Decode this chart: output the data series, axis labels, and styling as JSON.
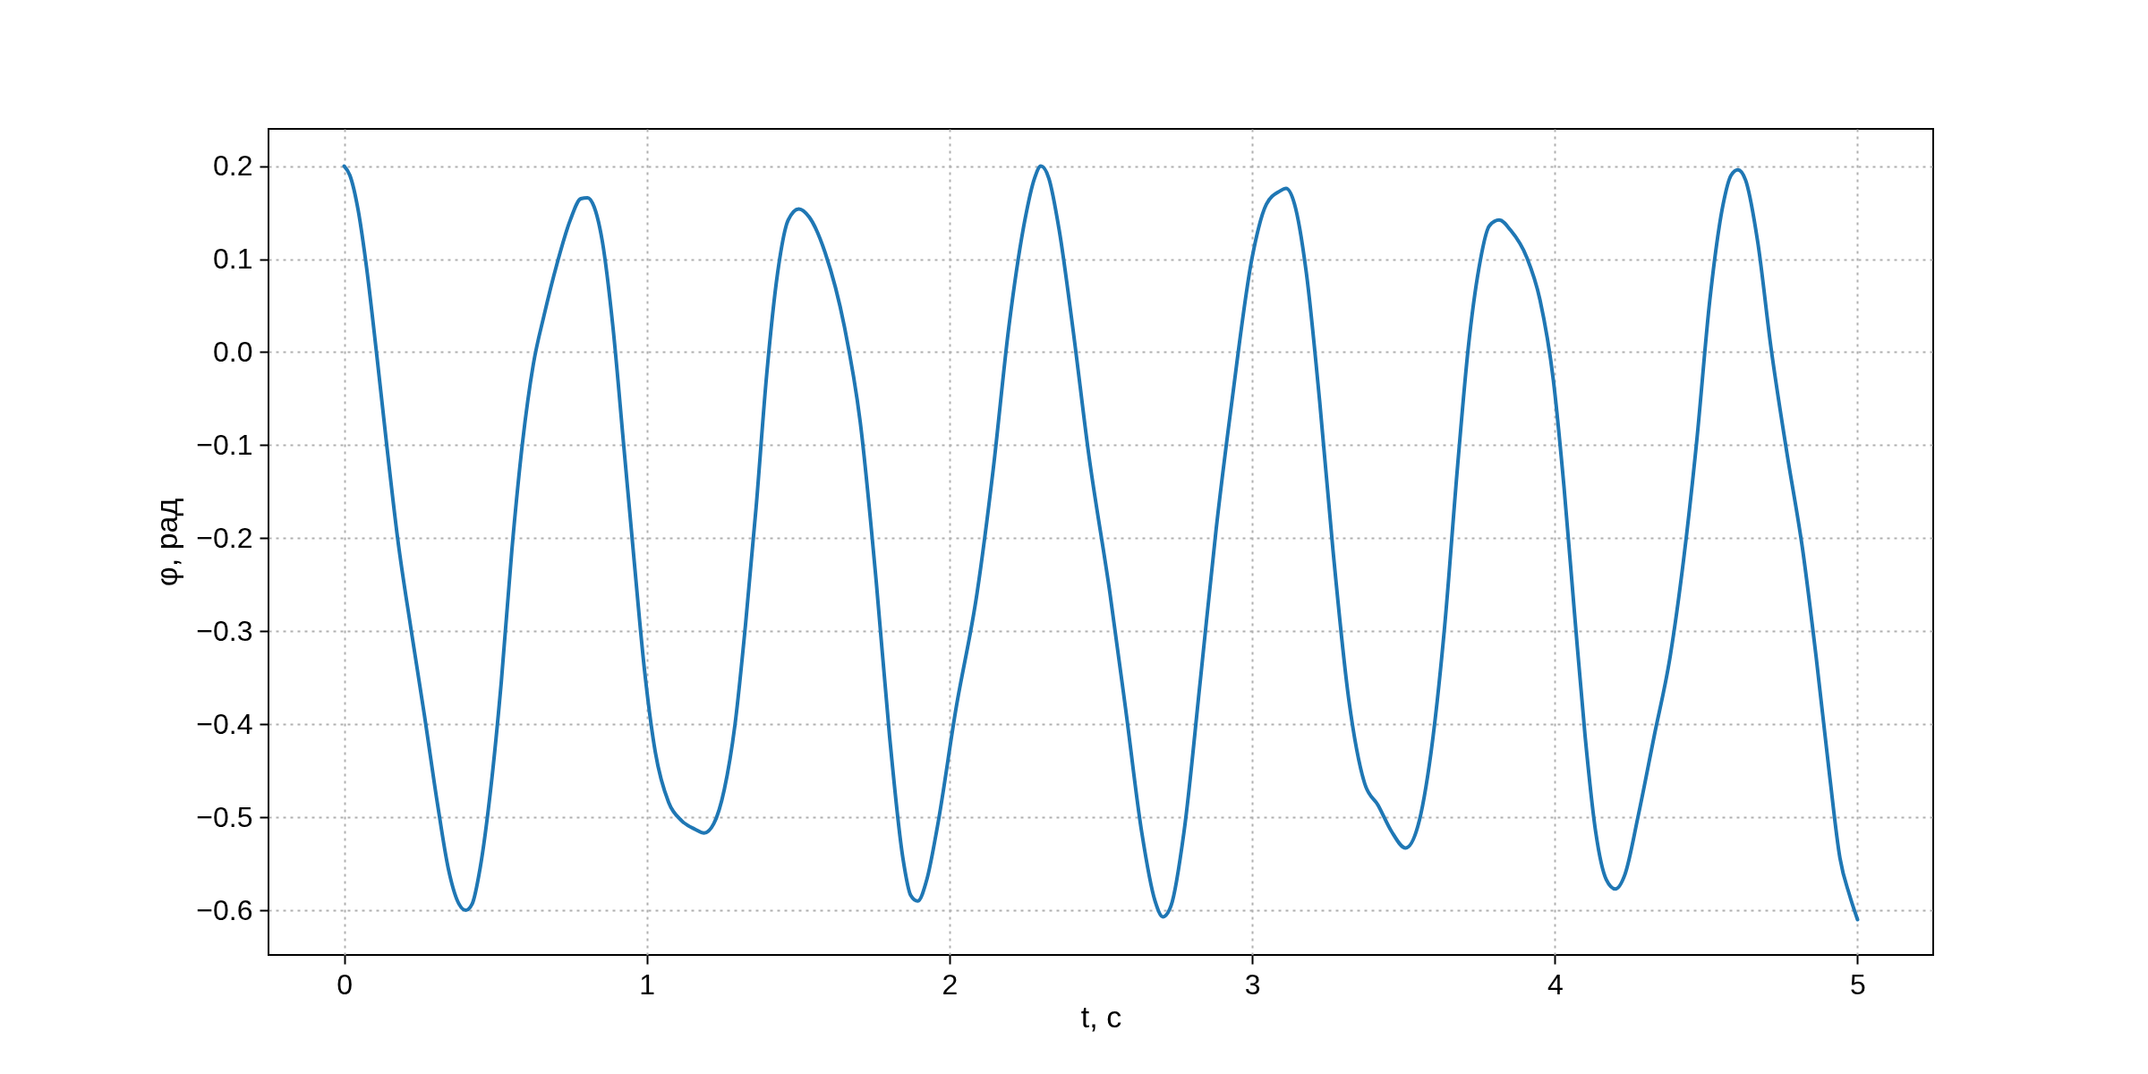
{
  "chart_data": {
    "type": "line",
    "xlabel": "t, с",
    "ylabel": "φ, рад",
    "xlim": [
      -0.25,
      5.25
    ],
    "xticks": [
      0,
      1,
      2,
      3,
      4,
      5
    ],
    "ylim": [
      -0.648,
      0.24
    ],
    "yticks": [
      {
        "value": -0.6,
        "label": "−0.6"
      },
      {
        "value": -0.5,
        "label": "−0.5"
      },
      {
        "value": -0.4,
        "label": "−0.4"
      },
      {
        "value": -0.3,
        "label": "−0.3"
      },
      {
        "value": -0.2,
        "label": "−0.2"
      },
      {
        "value": -0.1,
        "label": "−0.1"
      },
      {
        "value": 0,
        "label": "0.0"
      },
      {
        "value": 0.1,
        "label": "0.1"
      },
      {
        "value": 0.2,
        "label": "0.2"
      }
    ],
    "grid": true,
    "series": [
      {
        "color": "#1f77b4",
        "x": [
          0,
          0.019,
          0.046,
          0.072,
          0.107,
          0.142,
          0.177,
          0.221,
          0.265,
          0.309,
          0.344,
          0.379,
          0.402,
          0.423,
          0.449,
          0.484,
          0.519,
          0.554,
          0.589,
          0.625,
          0.66,
          0.704,
          0.747,
          0.782,
          0.804,
          0.826,
          0.853,
          0.888,
          0.923,
          0.958,
          0.993,
          1.028,
          1.072,
          1.116,
          1.16,
          1.189,
          1.221,
          1.256,
          1.291,
          1.326,
          1.361,
          1.396,
          1.432,
          1.467,
          1.502,
          1.537,
          1.589,
          1.653,
          1.705,
          1.758,
          1.802,
          1.846,
          1.872,
          1.895,
          1.925,
          1.96,
          2.021,
          2.091,
          2.144,
          2.196,
          2.249,
          2.281,
          2.302,
          2.328,
          2.363,
          2.407,
          2.46,
          2.53,
          2.582,
          2.635,
          2.679,
          2.705,
          2.732,
          2.775,
          2.828,
          2.881,
          2.933,
          3.0,
          3.047,
          3.091,
          3.112,
          3.14,
          3.179,
          3.223,
          3.267,
          3.319,
          3.372,
          3.416,
          3.46,
          3.507,
          3.547,
          3.591,
          3.635,
          3.679,
          3.714,
          3.749,
          3.784,
          3.816,
          3.854,
          3.907,
          3.951,
          3.995,
          4.03,
          4.065,
          4.1,
          4.135,
          4.17,
          4.2,
          4.232,
          4.275,
          4.328,
          4.381,
          4.425,
          4.468,
          4.512,
          4.556,
          4.582,
          4.605,
          4.63,
          4.67,
          4.714,
          4.767,
          4.819,
          4.863,
          4.907,
          4.942,
          4.974,
          5.0
        ],
        "values": [
          0.2,
          0.19,
          0.153,
          0.096,
          -0.001,
          -0.104,
          -0.201,
          -0.298,
          -0.39,
          -0.487,
          -0.555,
          -0.593,
          -0.6,
          -0.593,
          -0.555,
          -0.47,
          -0.355,
          -0.213,
          -0.098,
          -0.013,
          0.039,
          0.096,
          0.142,
          0.165,
          0.166,
          0.156,
          0.119,
          0.027,
          -0.098,
          -0.224,
          -0.344,
          -0.43,
          -0.484,
          -0.504,
          -0.513,
          -0.517,
          -0.507,
          -0.47,
          -0.401,
          -0.293,
          -0.167,
          -0.024,
          0.085,
          0.142,
          0.154,
          0.145,
          0.107,
          0.027,
          -0.075,
          -0.247,
          -0.413,
          -0.544,
          -0.584,
          -0.59,
          -0.567,
          -0.51,
          -0.384,
          -0.259,
          -0.127,
          0.027,
          0.142,
          0.187,
          0.2,
          0.187,
          0.13,
          0.027,
          -0.11,
          -0.259,
          -0.384,
          -0.516,
          -0.59,
          -0.607,
          -0.595,
          -0.515,
          -0.355,
          -0.19,
          -0.053,
          0.102,
          0.159,
          0.173,
          0.176,
          0.159,
          0.085,
          -0.053,
          -0.213,
          -0.373,
          -0.464,
          -0.487,
          -0.515,
          -0.533,
          -0.51,
          -0.43,
          -0.298,
          -0.121,
          0.005,
          0.09,
          0.136,
          0.142,
          0.131,
          0.102,
          0.056,
          -0.03,
          -0.144,
          -0.281,
          -0.413,
          -0.516,
          -0.567,
          -0.577,
          -0.561,
          -0.499,
          -0.413,
          -0.327,
          -0.224,
          -0.098,
          0.056,
          0.159,
          0.19,
          0.196,
          0.185,
          0.119,
          0.005,
          -0.109,
          -0.213,
          -0.327,
          -0.453,
          -0.544,
          -0.584,
          -0.61
        ]
      }
    ]
  }
}
